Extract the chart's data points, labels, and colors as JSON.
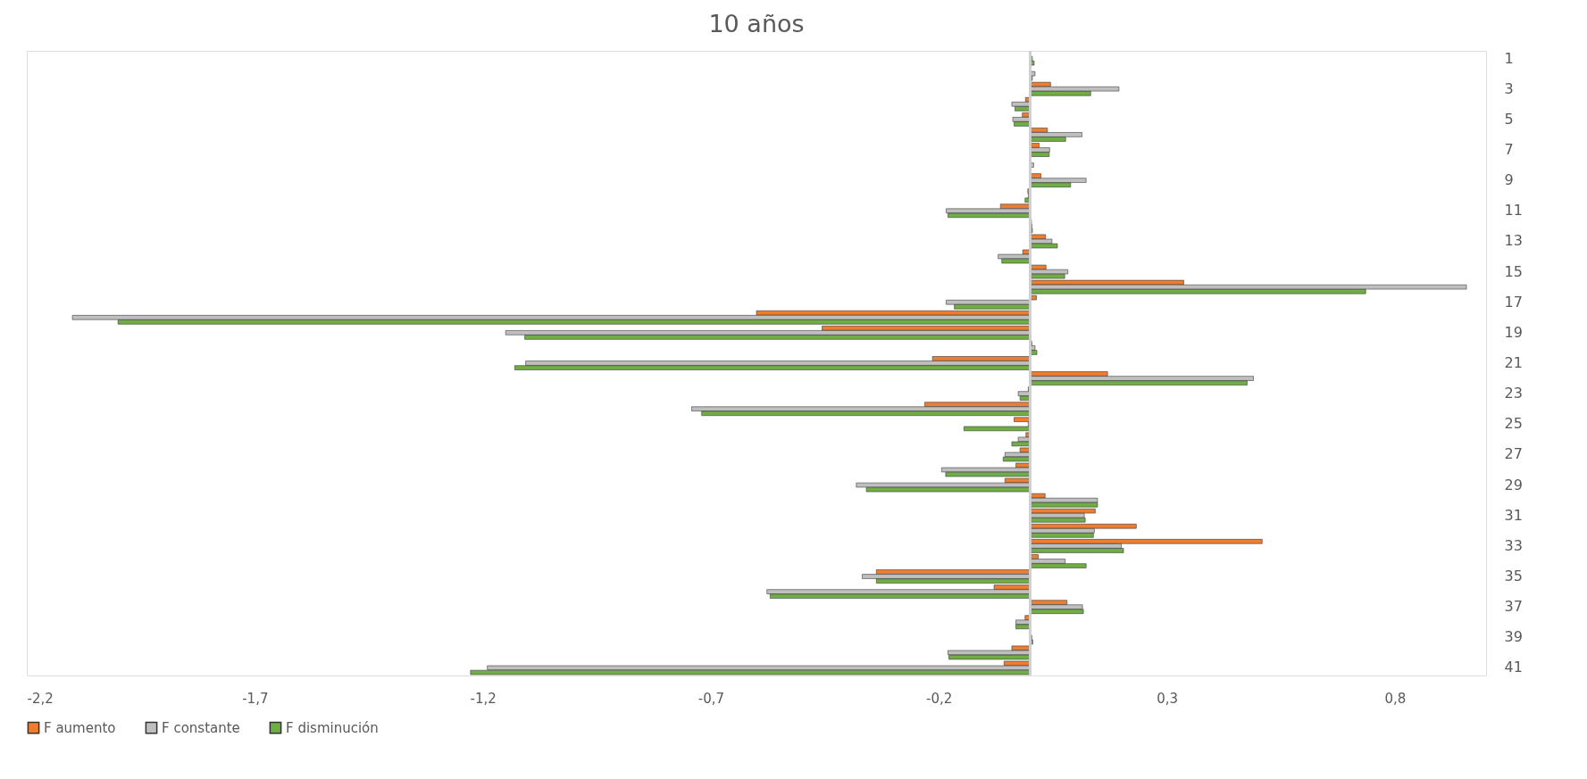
{
  "chart_data": {
    "type": "bar",
    "orientation": "horizontal",
    "title": "10 años",
    "categories": [
      "1",
      null,
      "3",
      null,
      "5",
      null,
      "7",
      null,
      "9",
      null,
      "11",
      null,
      "13",
      null,
      "15",
      null,
      "17",
      null,
      "19",
      null,
      "21",
      null,
      "23",
      null,
      "25",
      null,
      "27",
      null,
      "29",
      null,
      "31",
      null,
      "33",
      null,
      "35",
      null,
      "37",
      null,
      "39",
      null,
      "41"
    ],
    "series": [
      {
        "name": "F aumento",
        "color": "#ed7d31",
        "values": [
          null,
          null,
          0.045,
          -0.01,
          -0.017,
          0.038,
          0.02,
          0.001,
          0.024,
          -0.005,
          -0.065,
          0.003,
          0.034,
          -0.016,
          0.035,
          0.337,
          0.014,
          -0.6,
          -0.456,
          0.004,
          -0.214,
          0.17,
          -0.004,
          -0.231,
          -0.035,
          -0.009,
          -0.022,
          -0.031,
          -0.055,
          0.033,
          0.143,
          0.233,
          0.509,
          0.018,
          -0.337,
          -0.079,
          0.081,
          -0.011,
          null,
          -0.04,
          -0.057
        ]
      },
      {
        "name": "F constante",
        "color": "#bfbfbf",
        "values": [
          0.005,
          0.011,
          0.195,
          -0.04,
          -0.038,
          0.114,
          0.043,
          0.008,
          0.123,
          -0.004,
          -0.184,
          0.004,
          0.048,
          -0.07,
          0.083,
          0.957,
          -0.184,
          -2.1,
          -1.15,
          0.011,
          -1.106,
          0.49,
          -0.026,
          -0.742,
          -0.004,
          -0.026,
          -0.055,
          -0.194,
          -0.381,
          0.148,
          0.119,
          0.141,
          0.2,
          0.077,
          -0.368,
          -0.577,
          0.115,
          -0.031,
          0.004,
          -0.18,
          -1.19
        ]
      },
      {
        "name": "F disminución",
        "color": "#70ad47",
        "values": [
          0.009,
          0.005,
          0.133,
          -0.033,
          -0.035,
          0.078,
          0.042,
          null,
          0.089,
          -0.011,
          -0.18,
          0.005,
          0.06,
          -0.062,
          0.076,
          0.736,
          -0.166,
          -2.0,
          -1.108,
          0.015,
          -1.13,
          0.476,
          -0.022,
          -0.72,
          -0.145,
          -0.04,
          -0.059,
          -0.185,
          -0.359,
          0.148,
          0.121,
          0.139,
          0.205,
          0.123,
          -0.337,
          -0.57,
          0.117,
          -0.031,
          0.006,
          -0.178,
          -1.227
        ]
      }
    ],
    "xlim": [
      -2.2,
      1.0
    ],
    "xticks": [
      {
        "value": -2.2,
        "label": "-2,2"
      },
      {
        "value": -1.7,
        "label": "-1,7"
      },
      {
        "value": -1.2,
        "label": "-1,2"
      },
      {
        "value": -0.7,
        "label": "-0,7"
      },
      {
        "value": -0.2,
        "label": "-0,2"
      },
      {
        "value": 0.3,
        "label": "0,3"
      },
      {
        "value": 0.8,
        "label": "0,8"
      }
    ],
    "grid": false,
    "legend": "bottom"
  }
}
